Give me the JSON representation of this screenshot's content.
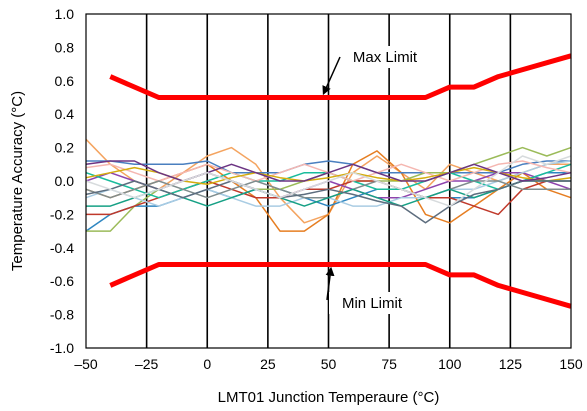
{
  "chart_data": {
    "type": "line",
    "title": "",
    "xlabel": "LMT01 Junction Temperaure (°C)",
    "ylabel": "Temperature Accuracy (°C)",
    "xlim": [
      -50,
      150
    ],
    "ylim": [
      -1.0,
      1.0
    ],
    "x_ticks": [
      -50,
      -25,
      0,
      25,
      50,
      75,
      100,
      125,
      150
    ],
    "x_tick_labels": [
      "–50",
      "–25",
      "0",
      "25",
      "50",
      "75",
      "100",
      "125",
      "150"
    ],
    "y_ticks": [
      -1.0,
      -0.8,
      -0.6,
      -0.4,
      -0.2,
      0.0,
      0.2,
      0.4,
      0.6,
      0.8,
      1.0
    ],
    "y_tick_labels": [
      "-1.0",
      "-0.8",
      "-0.6",
      "-0.4",
      "-0.2",
      "0.0",
      "0.2",
      "0.4",
      "0.6",
      "0.8",
      "1.0"
    ],
    "grid": {
      "vertical": true,
      "horizontal": false
    },
    "limit_color": "#ff0000",
    "limits": [
      {
        "label": "Max Limit",
        "x": [
          -40,
          -20,
          90,
          100,
          110,
          120,
          150
        ],
        "y": [
          0.625,
          0.5,
          0.5,
          0.5625,
          0.5625,
          0.625,
          0.75
        ]
      },
      {
        "label": "Min Limit",
        "x": [
          -40,
          -20,
          90,
          100,
          110,
          120,
          150
        ],
        "y": [
          -0.625,
          -0.5,
          -0.5,
          -0.5625,
          -0.5625,
          -0.625,
          -0.75
        ]
      }
    ],
    "sample_x": [
      -50,
      -40,
      -30,
      -20,
      -10,
      0,
      10,
      20,
      30,
      40,
      50,
      60,
      70,
      80,
      90,
      100,
      110,
      120,
      130,
      140,
      150
    ],
    "samples": [
      {
        "color": "#f4a460",
        "y": [
          0.25,
          0.1,
          0.0,
          -0.05,
          0.05,
          0.15,
          0.2,
          0.1,
          -0.1,
          -0.25,
          -0.2,
          0.05,
          0.15,
          0.05,
          -0.05,
          0.1,
          0.05,
          0.0,
          0.05,
          0.1,
          0.1
        ]
      },
      {
        "color": "#e67e22",
        "y": [
          -0.05,
          -0.1,
          -0.05,
          0.0,
          0.05,
          0.1,
          0.0,
          -0.1,
          -0.3,
          -0.3,
          -0.2,
          0.1,
          0.18,
          0.05,
          -0.2,
          -0.25,
          -0.15,
          -0.05,
          0.05,
          -0.05,
          -0.1
        ]
      },
      {
        "color": "#4a7fbf",
        "y": [
          0.12,
          0.12,
          0.1,
          0.1,
          0.1,
          0.12,
          0.05,
          0.05,
          0.05,
          0.1,
          0.12,
          0.1,
          0.05,
          0.05,
          0.05,
          0.05,
          0.05,
          0.05,
          0.1,
          0.12,
          0.12
        ]
      },
      {
        "color": "#2e86c1",
        "y": [
          -0.3,
          -0.2,
          -0.15,
          -0.15,
          -0.1,
          -0.05,
          -0.1,
          -0.05,
          -0.05,
          -0.1,
          -0.15,
          -0.1,
          -0.05,
          -0.05,
          -0.1,
          -0.1,
          -0.1,
          -0.05,
          0.0,
          0.05,
          0.05
        ]
      },
      {
        "color": "#9bbb59",
        "y": [
          -0.3,
          -0.3,
          -0.15,
          -0.05,
          0.0,
          0.05,
          0.0,
          -0.05,
          -0.05,
          0.0,
          0.05,
          0.0,
          0.0,
          0.0,
          0.05,
          0.05,
          0.1,
          0.15,
          0.2,
          0.15,
          0.2
        ]
      },
      {
        "color": "#c0392b",
        "y": [
          -0.2,
          -0.2,
          -0.15,
          -0.1,
          -0.05,
          0.0,
          -0.05,
          -0.1,
          -0.1,
          -0.05,
          -0.05,
          0.0,
          0.0,
          -0.05,
          -0.1,
          -0.1,
          -0.15,
          -0.2,
          -0.05,
          0.0,
          0.0
        ]
      },
      {
        "color": "#8e44ad",
        "y": [
          0.0,
          0.05,
          0.0,
          -0.05,
          0.0,
          0.05,
          0.0,
          -0.05,
          -0.1,
          -0.05,
          0.0,
          -0.05,
          -0.1,
          -0.1,
          -0.05,
          0.0,
          0.0,
          0.05,
          0.05,
          0.0,
          -0.05
        ]
      },
      {
        "color": "#1abc9c",
        "y": [
          0.05,
          0.0,
          -0.05,
          -0.1,
          -0.05,
          0.0,
          0.05,
          0.0,
          0.0,
          0.05,
          0.05,
          0.0,
          -0.05,
          -0.05,
          0.0,
          0.05,
          0.0,
          -0.05,
          0.0,
          0.05,
          0.1
        ]
      },
      {
        "color": "#a9cce3",
        "y": [
          -0.1,
          -0.05,
          -0.1,
          -0.15,
          -0.1,
          -0.05,
          -0.1,
          -0.15,
          -0.15,
          -0.1,
          -0.1,
          -0.15,
          -0.15,
          -0.1,
          -0.1,
          -0.05,
          -0.05,
          0.0,
          0.05,
          0.1,
          0.12
        ]
      },
      {
        "color": "#f5b7b1",
        "y": [
          0.08,
          0.1,
          0.05,
          0.0,
          0.05,
          0.1,
          0.05,
          0.0,
          0.05,
          0.1,
          0.05,
          0.0,
          0.05,
          0.1,
          0.05,
          0.0,
          0.05,
          0.1,
          0.12,
          0.08,
          0.05
        ]
      },
      {
        "color": "#7f8c8d",
        "y": [
          -0.05,
          -0.1,
          -0.05,
          0.0,
          -0.05,
          -0.1,
          -0.05,
          0.0,
          -0.05,
          -0.1,
          -0.1,
          -0.05,
          0.0,
          -0.05,
          -0.1,
          -0.05,
          0.0,
          0.0,
          -0.05,
          -0.05,
          -0.05
        ]
      },
      {
        "color": "#d4ac0d",
        "y": [
          0.02,
          0.05,
          0.08,
          0.05,
          0.0,
          -0.02,
          0.02,
          0.05,
          0.02,
          0.0,
          0.02,
          0.05,
          0.02,
          0.0,
          0.02,
          0.05,
          0.08,
          0.05,
          0.02,
          0.0,
          0.02
        ]
      },
      {
        "color": "#16a085",
        "y": [
          -0.15,
          -0.15,
          -0.1,
          -0.05,
          -0.1,
          -0.15,
          -0.1,
          -0.05,
          -0.1,
          -0.15,
          -0.1,
          -0.05,
          -0.1,
          -0.15,
          -0.1,
          -0.05,
          -0.1,
          -0.05,
          0.0,
          0.0,
          0.0
        ]
      },
      {
        "color": "#5d6d7e",
        "y": [
          -0.08,
          -0.05,
          0.0,
          -0.05,
          -0.1,
          -0.05,
          0.0,
          -0.05,
          -0.1,
          -0.08,
          -0.05,
          -0.08,
          -0.12,
          -0.15,
          -0.25,
          -0.15,
          -0.08,
          -0.05,
          0.0,
          0.0,
          0.0
        ]
      },
      {
        "color": "#6c3483",
        "y": [
          0.1,
          0.12,
          0.12,
          0.05,
          0.0,
          0.05,
          0.1,
          0.05,
          0.0,
          0.0,
          0.05,
          0.1,
          0.05,
          0.0,
          0.0,
          0.05,
          0.1,
          0.05,
          0.0,
          0.02,
          0.05
        ]
      },
      {
        "color": "#d7dbdd",
        "y": [
          0.0,
          -0.05,
          -0.1,
          -0.05,
          0.0,
          0.05,
          0.0,
          -0.05,
          -0.1,
          -0.05,
          0.0,
          0.05,
          0.0,
          -0.05,
          -0.1,
          -0.15,
          -0.05,
          0.05,
          0.15,
          0.1,
          0.15
        ]
      }
    ],
    "annotations": [
      {
        "text": "Max Limit",
        "arrow_to": [
          -12,
          0.5
        ]
      },
      {
        "text": "Min Limit",
        "arrow_to": [
          -9,
          -0.5
        ]
      }
    ]
  }
}
